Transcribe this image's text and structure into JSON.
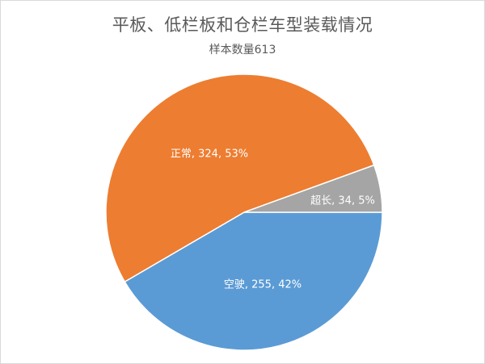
{
  "chart_data": {
    "type": "pie",
    "title": "平板、低栏板和仓栏车型装载情况",
    "subtitle": "样本数量613",
    "series": [
      {
        "values": [
          {
            "label": "超长",
            "value": 34,
            "percent": "5%",
            "color": "#a5a5a5",
            "label_text": "超长, 34, 5%"
          },
          {
            "label": "空驶",
            "value": 255,
            "percent": "42%",
            "color": "#5b9bd5",
            "label_text": "空驶, 255, 42%"
          },
          {
            "label": "正常",
            "value": 324,
            "percent": "53%",
            "color": "#ed7d31",
            "label_text": "正常, 324, 53%"
          }
        ]
      }
    ],
    "legend": "none",
    "start_angle": "east (3 o'clock)",
    "direction": "counterclockwise for 超长, then clockwise-order rendering"
  }
}
